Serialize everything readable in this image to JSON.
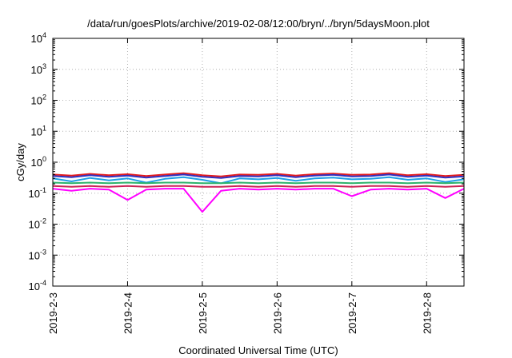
{
  "chart_data": {
    "type": "line",
    "title": "/data/run/goesPlots/archive/2019-02-08/12:00/bryn/../bryn/5daysMoon.plot",
    "xlabel": "Coordinated Universal Time (UTC)",
    "ylabel": "cGy/day",
    "yscale": "log",
    "ylim": [
      0.0001,
      10000
    ],
    "xlim": [
      "2019-2-3",
      "2019-2-8 12:00"
    ],
    "grid": true,
    "x_tick_labels": [
      "2019-2-3",
      "2019-2-4",
      "2019-2-5",
      "2019-2-6",
      "2019-2-7",
      "2019-2-8"
    ],
    "y_ticks": [
      {
        "value": 0.0001,
        "base": "10",
        "exp": "-4"
      },
      {
        "value": 0.001,
        "base": "10",
        "exp": "-3"
      },
      {
        "value": 0.01,
        "base": "10",
        "exp": "-2"
      },
      {
        "value": 0.1,
        "base": "10",
        "exp": "-1"
      },
      {
        "value": 1,
        "base": "10",
        "exp": "0"
      },
      {
        "value": 10,
        "base": "10",
        "exp": "1"
      },
      {
        "value": 100,
        "base": "10",
        "exp": "2"
      },
      {
        "value": 1000,
        "base": "10",
        "exp": "3"
      },
      {
        "value": 10000,
        "base": "10",
        "exp": "4"
      }
    ],
    "x": [
      "2019-2-3 00:00",
      "2019-2-3 06:00",
      "2019-2-3 12:00",
      "2019-2-3 18:00",
      "2019-2-4 00:00",
      "2019-2-4 06:00",
      "2019-2-4 12:00",
      "2019-2-4 18:00",
      "2019-2-5 00:00",
      "2019-2-5 06:00",
      "2019-2-5 12:00",
      "2019-2-5 18:00",
      "2019-2-6 00:00",
      "2019-2-6 06:00",
      "2019-2-6 12:00",
      "2019-2-6 18:00",
      "2019-2-7 00:00",
      "2019-2-7 06:00",
      "2019-2-7 12:00",
      "2019-2-7 18:00",
      "2019-2-8 00:00",
      "2019-2-8 06:00",
      "2019-2-8 12:00"
    ],
    "series": [
      {
        "color": "#e41a1c",
        "values": [
          0.4,
          0.37,
          0.42,
          0.38,
          0.41,
          0.36,
          0.4,
          0.44,
          0.38,
          0.35,
          0.4,
          0.39,
          0.42,
          0.37,
          0.41,
          0.43,
          0.39,
          0.4,
          0.44,
          0.38,
          0.41,
          0.36,
          0.39
        ]
      },
      {
        "color": "#3030c0",
        "values": [
          0.36,
          0.33,
          0.38,
          0.34,
          0.37,
          0.32,
          0.36,
          0.4,
          0.34,
          0.31,
          0.36,
          0.35,
          0.38,
          0.33,
          0.37,
          0.39,
          0.35,
          0.36,
          0.4,
          0.34,
          0.37,
          0.32,
          0.35
        ]
      },
      {
        "color": "#1e9fe6",
        "values": [
          0.3,
          0.24,
          0.31,
          0.26,
          0.3,
          0.22,
          0.29,
          0.33,
          0.27,
          0.21,
          0.3,
          0.28,
          0.31,
          0.25,
          0.3,
          0.32,
          0.28,
          0.29,
          0.33,
          0.27,
          0.3,
          0.23,
          0.28
        ]
      },
      {
        "color": "#2db36b",
        "values": [
          0.22,
          0.21,
          0.22,
          0.21,
          0.22,
          0.21,
          0.22,
          0.22,
          0.21,
          0.21,
          0.22,
          0.21,
          0.22,
          0.21,
          0.22,
          0.22,
          0.21,
          0.22,
          0.22,
          0.21,
          0.22,
          0.21,
          0.22
        ]
      },
      {
        "color": "#cc2255",
        "values": [
          0.17,
          0.16,
          0.17,
          0.16,
          0.17,
          0.16,
          0.17,
          0.17,
          0.16,
          0.16,
          0.17,
          0.16,
          0.17,
          0.16,
          0.17,
          0.17,
          0.16,
          0.17,
          0.17,
          0.16,
          0.17,
          0.16,
          0.17
        ]
      },
      {
        "color": "#ff00ff",
        "values": [
          0.14,
          0.12,
          0.14,
          0.13,
          0.06,
          0.13,
          0.14,
          0.14,
          0.025,
          0.12,
          0.14,
          0.13,
          0.14,
          0.13,
          0.14,
          0.14,
          0.08,
          0.13,
          0.14,
          0.13,
          0.14,
          0.07,
          0.14
        ]
      }
    ]
  }
}
